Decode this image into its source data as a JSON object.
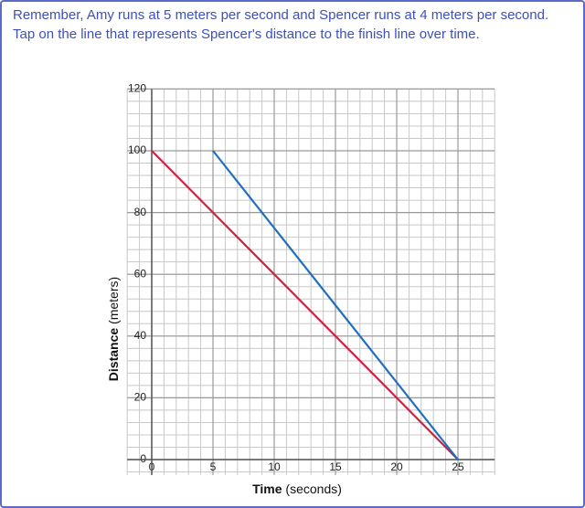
{
  "prompt": "Remember, Amy runs at 5 meters per second and Spencer runs at 4 meters per second. Tap on the line that represents Spencer's distance to the finish line over time.",
  "chart_data": {
    "type": "line",
    "x_label": {
      "bold": "Time",
      "rest": "(seconds)"
    },
    "y_label": {
      "bold": "Distance",
      "rest": "(meters)"
    },
    "xlim": [
      -2,
      28
    ],
    "xticks": [
      0,
      5,
      10,
      15,
      20,
      25
    ],
    "ylim": [
      -5,
      120
    ],
    "yticks": [
      0,
      20,
      40,
      60,
      80,
      100,
      120
    ],
    "grid": true,
    "series": [
      {
        "color": "#d0213f",
        "x": [
          0,
          25
        ],
        "values": [
          100,
          0
        ]
      },
      {
        "color": "#1f6fbf",
        "x": [
          5,
          25
        ],
        "values": [
          100,
          0
        ]
      }
    ]
  }
}
